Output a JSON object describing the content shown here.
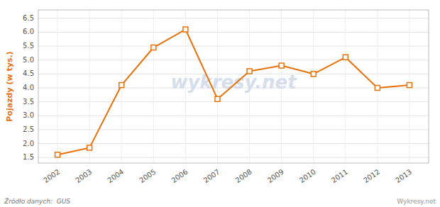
{
  "chart_data": {
    "type": "line",
    "x": [
      2002,
      2003,
      2004,
      2005,
      2006,
      2007,
      2008,
      2009,
      2010,
      2011,
      2012,
      2013
    ],
    "values": [
      1.6,
      1.85,
      4.1,
      5.45,
      6.1,
      3.6,
      4.6,
      4.8,
      4.5,
      5.1,
      4.0,
      4.1
    ],
    "color": "#e8710a",
    "marker": "square",
    "ylabel": "Pojazdy (w tys.)",
    "xlim": [
      2001.4,
      2013.6
    ],
    "xticks": [
      2002,
      2003,
      2004,
      2005,
      2006,
      2007,
      2008,
      2009,
      2010,
      2011,
      2012,
      2013
    ],
    "ylim": [
      1.3,
      6.8
    ],
    "yticks": [
      1.5,
      {
        "value": 2.0,
        "label": "2.0"
      },
      2.5,
      {
        "value": 3.0,
        "label": "3.0"
      },
      3.5,
      {
        "value": 4.0,
        "label": "4.0"
      },
      4.5,
      {
        "value": 5.0,
        "label": "5.0"
      },
      5.5,
      {
        "value": 6.0,
        "label": "6.0"
      },
      6.5
    ],
    "grid": true,
    "annotations": [
      "wykresy.net",
      "Źródło danych:  GUS",
      "Wykresy.net"
    ]
  }
}
